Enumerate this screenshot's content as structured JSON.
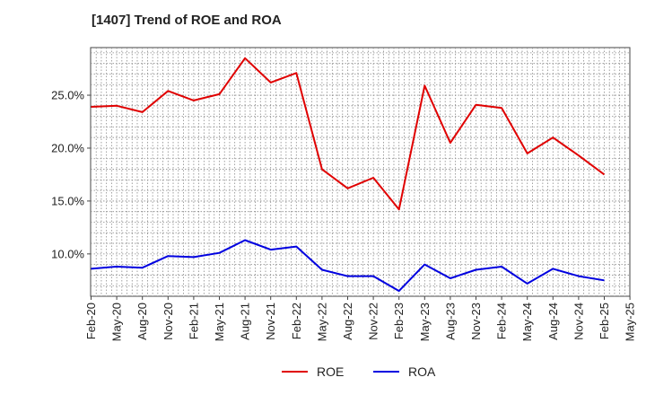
{
  "chart_data": {
    "type": "line",
    "title": "[1407]  Trend of ROE and ROA",
    "x": [
      "Feb-20",
      "May-20",
      "Aug-20",
      "Nov-20",
      "Feb-21",
      "May-21",
      "Aug-21",
      "Nov-21",
      "Feb-22",
      "May-22",
      "Aug-22",
      "Nov-22",
      "Feb-23",
      "May-23",
      "Aug-23",
      "Nov-23",
      "Feb-24",
      "May-24",
      "Aug-24",
      "Nov-24",
      "Feb-25"
    ],
    "x_ticks": [
      "Feb-20",
      "May-20",
      "Aug-20",
      "Nov-20",
      "Feb-21",
      "May-21",
      "Aug-21",
      "Nov-21",
      "Feb-22",
      "May-22",
      "Aug-22",
      "Nov-22",
      "Feb-23",
      "May-23",
      "Aug-23",
      "Nov-23",
      "Feb-24",
      "May-24",
      "Aug-24",
      "Nov-24",
      "Feb-25",
      "May-25"
    ],
    "y_ticks": [
      "10.0%",
      "15.0%",
      "20.0%",
      "25.0%"
    ],
    "y_tick_values": [
      10,
      15,
      20,
      25
    ],
    "ylim": [
      6.0,
      29.5
    ],
    "series": [
      {
        "name": "ROE",
        "color": "#e00000",
        "values": [
          23.9,
          24.0,
          23.4,
          25.4,
          24.5,
          25.1,
          28.5,
          26.2,
          27.1,
          18.0,
          16.2,
          17.2,
          14.2,
          25.9,
          20.5,
          24.1,
          23.8,
          19.5,
          21.0,
          19.3,
          17.5
        ]
      },
      {
        "name": "ROA",
        "color": "#0000e0",
        "values": [
          8.6,
          8.8,
          8.7,
          9.8,
          9.7,
          10.1,
          11.3,
          10.4,
          10.7,
          8.5,
          7.9,
          7.9,
          6.5,
          9.0,
          7.7,
          8.5,
          8.8,
          7.2,
          8.6,
          7.9,
          7.5
        ]
      }
    ],
    "grid": true,
    "legend": "bottom-center"
  }
}
